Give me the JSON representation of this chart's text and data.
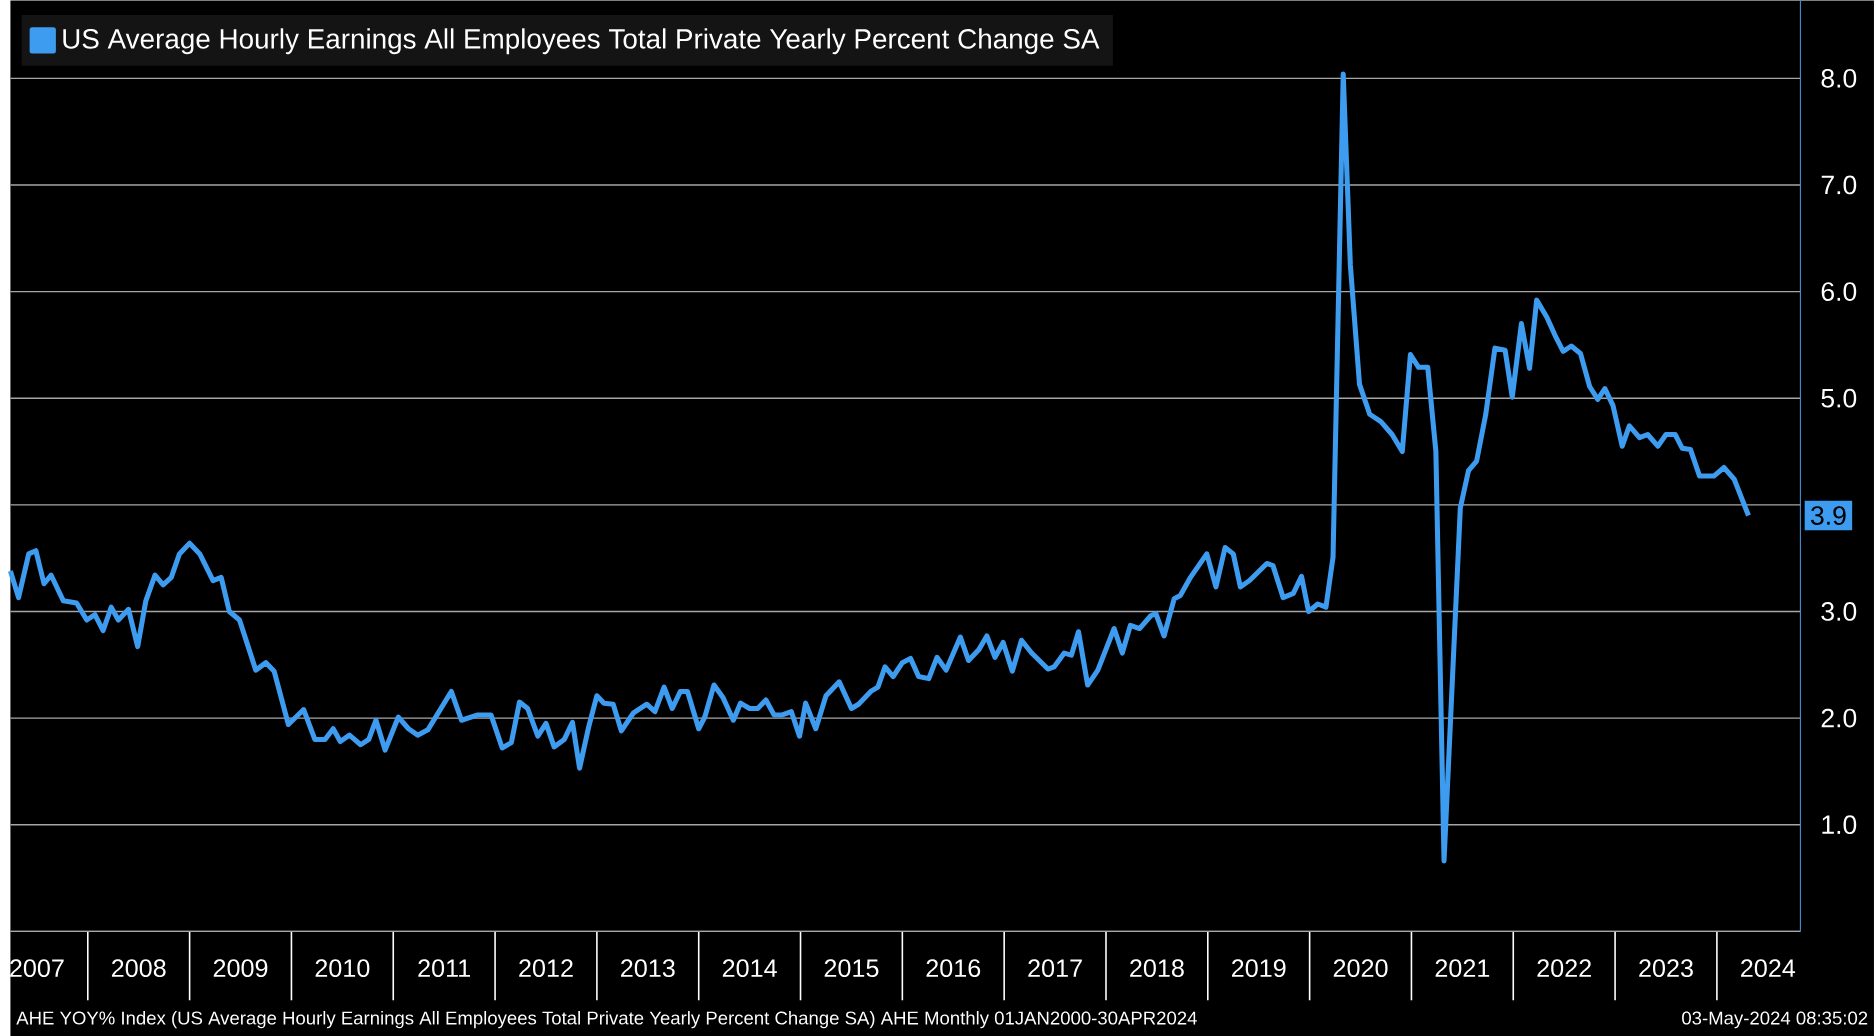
{
  "chart_data": {
    "type": "line",
    "x": [
      2007.24,
      2007.32,
      2007.42,
      2007.49,
      2007.57,
      2007.64,
      2007.76,
      2007.89,
      2007.99,
      2008.07,
      2008.15,
      2008.23,
      2008.3,
      2008.4,
      2008.49,
      2008.57,
      2008.66,
      2008.74,
      2008.82,
      2008.9,
      2009.0,
      2009.1,
      2009.23,
      2009.31,
      2009.39,
      2009.49,
      2009.65,
      2009.75,
      2009.83,
      2009.97,
      2010.12,
      2010.23,
      2010.33,
      2010.41,
      2010.48,
      2010.57,
      2010.68,
      2010.76,
      2010.83,
      2010.92,
      2011.05,
      2011.15,
      2011.24,
      2011.34,
      2011.57,
      2011.67,
      2011.83,
      2011.96,
      2012.07,
      2012.16,
      2012.24,
      2012.32,
      2012.42,
      2012.5,
      2012.58,
      2012.68,
      2012.76,
      2012.83,
      2012.92,
      2013.0,
      2013.07,
      2013.16,
      2013.24,
      2013.36,
      2013.49,
      2013.57,
      2013.66,
      2013.74,
      2013.82,
      2013.89,
      2014.0,
      2014.06,
      2014.15,
      2014.24,
      2014.34,
      2014.41,
      2014.5,
      2014.58,
      2014.66,
      2014.74,
      2014.82,
      2014.91,
      2014.99,
      2015.05,
      2015.15,
      2015.25,
      2015.38,
      2015.5,
      2015.57,
      2015.69,
      2015.76,
      2015.83,
      2015.91,
      2016.0,
      2016.08,
      2016.16,
      2016.26,
      2016.34,
      2016.43,
      2016.57,
      2016.65,
      2016.75,
      2016.83,
      2016.91,
      2016.99,
      2017.08,
      2017.17,
      2017.27,
      2017.43,
      2017.49,
      2017.59,
      2017.66,
      2017.73,
      2017.82,
      2017.92,
      2018.08,
      2018.16,
      2018.24,
      2018.33,
      2018.44,
      2018.49,
      2018.57,
      2018.67,
      2018.73,
      2018.83,
      2018.99,
      2019.08,
      2019.17,
      2019.25,
      2019.32,
      2019.41,
      2019.58,
      2019.64,
      2019.74,
      2019.84,
      2019.92,
      2019.99,
      2020.08,
      2020.16,
      2020.23,
      2020.33,
      2020.4,
      2020.49,
      2020.59,
      2020.7,
      2020.81,
      2020.91,
      2020.99,
      2021.07,
      2021.16,
      2021.24,
      2021.32,
      2021.48,
      2021.56,
      2021.64,
      2021.73,
      2021.82,
      2021.92,
      2021.99,
      2022.08,
      2022.16,
      2022.23,
      2022.33,
      2022.41,
      2022.49,
      2022.57,
      2022.66,
      2022.75,
      2022.83,
      2022.9,
      2022.98,
      2023.07,
      2023.14,
      2023.24,
      2023.32,
      2023.42,
      2023.5,
      2023.59,
      2023.66,
      2023.74,
      2023.83,
      2023.97,
      2024.07,
      2024.17,
      2024.31
    ],
    "series": [
      {
        "name": "US Average Hourly Earnings All Employees Total Private Yearly Percent Change SA",
        "color": "#3d9cf0",
        "values": [
          3.38,
          3.13,
          3.54,
          3.57,
          3.26,
          3.34,
          3.1,
          3.08,
          2.92,
          2.97,
          2.82,
          3.04,
          2.92,
          3.02,
          2.67,
          3.1,
          3.34,
          3.25,
          3.32,
          3.54,
          3.64,
          3.54,
          3.29,
          3.32,
          3.0,
          2.92,
          2.45,
          2.52,
          2.44,
          1.94,
          2.08,
          1.8,
          1.8,
          1.9,
          1.78,
          1.84,
          1.75,
          1.8,
          1.98,
          1.7,
          2.01,
          1.9,
          1.84,
          1.89,
          2.25,
          1.98,
          2.03,
          2.03,
          1.72,
          1.77,
          2.15,
          2.09,
          1.83,
          1.95,
          1.73,
          1.8,
          1.96,
          1.53,
          1.92,
          2.21,
          2.14,
          2.13,
          1.88,
          2.05,
          2.13,
          2.06,
          2.29,
          2.09,
          2.25,
          2.25,
          1.9,
          2.01,
          2.31,
          2.19,
          1.98,
          2.14,
          2.09,
          2.09,
          2.17,
          2.03,
          2.03,
          2.06,
          1.83,
          2.14,
          1.9,
          2.21,
          2.34,
          2.09,
          2.13,
          2.25,
          2.29,
          2.48,
          2.39,
          2.52,
          2.56,
          2.39,
          2.37,
          2.57,
          2.45,
          2.76,
          2.54,
          2.64,
          2.77,
          2.57,
          2.71,
          2.44,
          2.73,
          2.61,
          2.46,
          2.48,
          2.61,
          2.59,
          2.81,
          2.31,
          2.45,
          2.84,
          2.61,
          2.87,
          2.84,
          2.96,
          2.98,
          2.77,
          3.12,
          3.15,
          3.32,
          3.54,
          3.23,
          3.6,
          3.54,
          3.23,
          3.29,
          3.45,
          3.43,
          3.13,
          3.17,
          3.33,
          3.0,
          3.07,
          3.04,
          3.51,
          8.04,
          6.25,
          5.13,
          4.85,
          4.78,
          4.66,
          4.5,
          5.41,
          5.29,
          5.29,
          4.5,
          0.66,
          3.97,
          4.32,
          4.41,
          4.85,
          5.47,
          5.45,
          5.01,
          5.7,
          5.28,
          5.92,
          5.76,
          5.59,
          5.44,
          5.49,
          5.42,
          5.11,
          4.99,
          5.09,
          4.93,
          4.55,
          4.74,
          4.63,
          4.66,
          4.55,
          4.66,
          4.66,
          4.53,
          4.52,
          4.27,
          4.27,
          4.35,
          4.24,
          3.9
        ]
      }
    ],
    "xlim": [
      2007.24,
      2024.82
    ],
    "xticks": [
      {
        "value": 2007.5,
        "label": "2007"
      },
      {
        "value": 2008,
        "label": null
      },
      {
        "value": 2008.5,
        "label": "2008"
      },
      {
        "value": 2009,
        "label": null
      },
      {
        "value": 2009.5,
        "label": "2009"
      },
      {
        "value": 2010,
        "label": null
      },
      {
        "value": 2010.5,
        "label": "2010"
      },
      {
        "value": 2011,
        "label": null
      },
      {
        "value": 2011.5,
        "label": "2011"
      },
      {
        "value": 2012,
        "label": null
      },
      {
        "value": 2012.5,
        "label": "2012"
      },
      {
        "value": 2013,
        "label": null
      },
      {
        "value": 2013.5,
        "label": "2013"
      },
      {
        "value": 2014,
        "label": null
      },
      {
        "value": 2014.5,
        "label": "2014"
      },
      {
        "value": 2015,
        "label": null
      },
      {
        "value": 2015.5,
        "label": "2015"
      },
      {
        "value": 2016,
        "label": null
      },
      {
        "value": 2016.5,
        "label": "2016"
      },
      {
        "value": 2017,
        "label": null
      },
      {
        "value": 2017.5,
        "label": "2017"
      },
      {
        "value": 2018,
        "label": null
      },
      {
        "value": 2018.5,
        "label": "2018"
      },
      {
        "value": 2019,
        "label": null
      },
      {
        "value": 2019.5,
        "label": "2019"
      },
      {
        "value": 2020,
        "label": null
      },
      {
        "value": 2020.5,
        "label": "2020"
      },
      {
        "value": 2021,
        "label": null
      },
      {
        "value": 2021.5,
        "label": "2021"
      },
      {
        "value": 2022,
        "label": null
      },
      {
        "value": 2022.5,
        "label": "2022"
      },
      {
        "value": 2023,
        "label": null
      },
      {
        "value": 2023.5,
        "label": "2023"
      },
      {
        "value": 2024,
        "label": null
      },
      {
        "value": 2024.5,
        "label": "2024"
      }
    ],
    "ylim": [
      0,
      8.73
    ],
    "yticks": [
      {
        "value": 0,
        "label": null
      },
      {
        "value": 1,
        "label": "1.0"
      },
      {
        "value": 2,
        "label": "2.0"
      },
      {
        "value": 3,
        "label": "3.0"
      },
      {
        "value": 4,
        "label": null
      },
      {
        "value": 5,
        "label": "5.0"
      },
      {
        "value": 6,
        "label": "6.0"
      },
      {
        "value": 7,
        "label": "7.0"
      },
      {
        "value": 8,
        "label": "8.0"
      }
    ],
    "grid": "y",
    "legend": "top left",
    "annotations": [
      {
        "text": "3.9",
        "x": 2024.31,
        "y": 3.9
      },
      "AHE YOY% Index (US Average Hourly Earnings All Employees Total Private Yearly Percent Change SA) AHE  Monthly 01JAN2000-30APR2024",
      "03-May-2024 08:35:02"
    ]
  }
}
